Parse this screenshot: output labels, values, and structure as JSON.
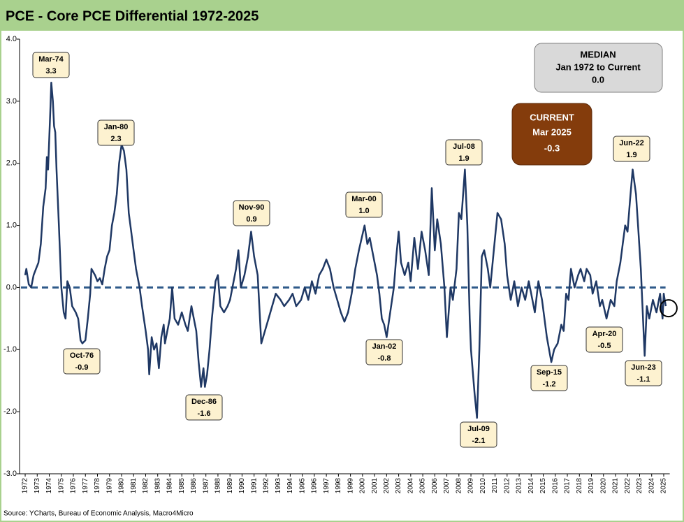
{
  "chart_data": {
    "type": "line",
    "title": "PCE - Core PCE Differential 1972-2025",
    "source": "Source: YCharts, Bureau of Economic Analysis, Macro4Micro",
    "color": "#1f3864",
    "x": [
      1972.0,
      1972.1,
      1972.3,
      1972.5,
      1972.7,
      1972.9,
      1973.1,
      1973.3,
      1973.5,
      1973.7,
      1973.8,
      1973.9,
      1974.0,
      1974.1,
      1974.17,
      1974.3,
      1974.4,
      1974.5,
      1974.6,
      1974.8,
      1975.0,
      1975.2,
      1975.35,
      1975.5,
      1975.7,
      1975.9,
      1976.2,
      1976.4,
      1976.6,
      1976.75,
      1977.0,
      1977.2,
      1977.4,
      1977.5,
      1977.8,
      1978.0,
      1978.2,
      1978.4,
      1978.6,
      1978.8,
      1979.0,
      1979.2,
      1979.4,
      1979.6,
      1979.8,
      1980.0,
      1980.2,
      1980.4,
      1980.6,
      1980.8,
      1981.0,
      1981.2,
      1981.5,
      1981.7,
      1982.0,
      1982.2,
      1982.3,
      1982.5,
      1982.7,
      1982.9,
      1983.1,
      1983.3,
      1983.5,
      1983.6,
      1983.8,
      1984.0,
      1984.2,
      1984.4,
      1984.7,
      1985.0,
      1985.3,
      1985.5,
      1985.8,
      1986.0,
      1986.2,
      1986.4,
      1986.6,
      1986.8,
      1986.92,
      1987.1,
      1987.3,
      1987.5,
      1987.8,
      1988.0,
      1988.2,
      1988.5,
      1988.8,
      1989.0,
      1989.3,
      1989.5,
      1989.7,
      1989.9,
      1990.2,
      1990.5,
      1990.75,
      1991.0,
      1991.3,
      1991.6,
      1991.9,
      1992.2,
      1992.5,
      1992.8,
      1993.2,
      1993.5,
      1993.9,
      1994.2,
      1994.5,
      1994.9,
      1995.2,
      1995.5,
      1995.8,
      1996.1,
      1996.4,
      1996.7,
      1997.0,
      1997.3,
      1997.6,
      1997.9,
      1998.2,
      1998.5,
      1998.8,
      1999.1,
      1999.4,
      1999.7,
      2000.17,
      2000.4,
      2000.6,
      2000.9,
      2001.2,
      2001.4,
      2001.6,
      2001.8,
      2002.0,
      2002.3,
      2002.6,
      2002.8,
      2003.0,
      2003.2,
      2003.5,
      2003.8,
      2004.0,
      2004.3,
      2004.6,
      2004.9,
      2005.2,
      2005.5,
      2005.75,
      2006.0,
      2006.2,
      2006.5,
      2006.8,
      2007.0,
      2007.3,
      2007.5,
      2007.8,
      2008.0,
      2008.2,
      2008.5,
      2008.7,
      2008.9,
      2009.0,
      2009.3,
      2009.5,
      2009.7,
      2009.9,
      2010.1,
      2010.4,
      2010.6,
      2010.9,
      2011.2,
      2011.5,
      2011.8,
      2012.0,
      2012.3,
      2012.6,
      2012.9,
      2013.2,
      2013.5,
      2013.8,
      2014.0,
      2014.3,
      2014.6,
      2014.9,
      2015.3,
      2015.67,
      2015.9,
      2016.2,
      2016.5,
      2016.7,
      2016.9,
      2017.1,
      2017.3,
      2017.6,
      2017.9,
      2018.1,
      2018.4,
      2018.6,
      2018.9,
      2019.1,
      2019.4,
      2019.7,
      2019.9,
      2020.25,
      2020.6,
      2020.9,
      2021.1,
      2021.4,
      2021.6,
      2021.8,
      2022.0,
      2022.2,
      2022.42,
      2022.7,
      2022.9,
      2023.1,
      2023.42,
      2023.6,
      2023.8,
      2024.1,
      2024.4,
      2024.7,
      2024.9,
      2025.0,
      2025.17
    ],
    "values": [
      0.2,
      0.3,
      0.05,
      0.0,
      0.2,
      0.3,
      0.4,
      0.7,
      1.3,
      1.6,
      2.1,
      1.9,
      2.4,
      2.9,
      3.3,
      3.0,
      2.6,
      2.5,
      1.9,
      1.0,
      0.0,
      -0.4,
      -0.5,
      0.1,
      0.0,
      -0.3,
      -0.4,
      -0.5,
      -0.85,
      -0.9,
      -0.85,
      -0.5,
      -0.1,
      0.3,
      0.2,
      0.1,
      0.15,
      0.05,
      0.3,
      0.5,
      0.6,
      1.0,
      1.2,
      1.5,
      2.0,
      2.3,
      2.2,
      1.9,
      1.2,
      0.9,
      0.6,
      0.3,
      0.0,
      -0.3,
      -0.7,
      -1.0,
      -1.4,
      -0.8,
      -1.0,
      -0.9,
      -1.3,
      -0.8,
      -0.6,
      -0.9,
      -0.7,
      -0.5,
      0.0,
      -0.5,
      -0.6,
      -0.4,
      -0.6,
      -0.7,
      -0.3,
      -0.5,
      -0.7,
      -1.2,
      -1.6,
      -1.3,
      -1.6,
      -1.4,
      -1.0,
      -0.5,
      0.1,
      0.2,
      -0.3,
      -0.4,
      -0.3,
      -0.2,
      0.1,
      0.3,
      0.6,
      0.0,
      0.2,
      0.5,
      0.9,
      0.5,
      0.2,
      -0.9,
      -0.7,
      -0.5,
      -0.3,
      -0.1,
      -0.2,
      -0.3,
      -0.2,
      -0.1,
      -0.3,
      -0.2,
      0.0,
      -0.2,
      0.1,
      -0.1,
      0.2,
      0.3,
      0.45,
      0.3,
      0.0,
      -0.2,
      -0.4,
      -0.55,
      -0.4,
      -0.1,
      0.3,
      0.6,
      1.0,
      0.7,
      0.8,
      0.5,
      0.2,
      -0.1,
      -0.5,
      -0.6,
      -0.8,
      -0.4,
      0.0,
      0.5,
      0.9,
      0.4,
      0.2,
      0.4,
      0.1,
      0.8,
      0.3,
      0.9,
      0.6,
      0.2,
      1.6,
      0.6,
      1.1,
      0.7,
      0.0,
      -0.8,
      0.0,
      -0.2,
      0.3,
      1.2,
      1.1,
      1.9,
      1.0,
      -0.5,
      -1.0,
      -1.7,
      -2.1,
      -1.0,
      0.5,
      0.6,
      0.3,
      0.0,
      0.6,
      1.2,
      1.1,
      0.7,
      0.2,
      -0.2,
      0.1,
      -0.3,
      0.0,
      -0.2,
      0.1,
      -0.1,
      -0.4,
      0.1,
      -0.2,
      -0.8,
      -1.2,
      -1.0,
      -0.9,
      -0.6,
      -0.7,
      -0.1,
      -0.2,
      0.3,
      0.0,
      0.2,
      0.3,
      0.1,
      0.3,
      0.2,
      -0.1,
      0.1,
      -0.3,
      -0.2,
      -0.5,
      -0.2,
      -0.3,
      0.1,
      0.4,
      0.7,
      1.0,
      0.9,
      1.4,
      1.9,
      1.5,
      0.9,
      0.3,
      -1.1,
      -0.3,
      -0.5,
      -0.2,
      -0.4,
      -0.1,
      -0.5,
      -0.1,
      -0.3
    ],
    "xlim": [
      1971.5,
      2025.5
    ],
    "xticks": [
      1972,
      1973,
      1974,
      1975,
      1976,
      1977,
      1978,
      1979,
      1980,
      1981,
      1982,
      1983,
      1984,
      1985,
      1986,
      1987,
      1988,
      1989,
      1990,
      1991,
      1992,
      1993,
      1994,
      1995,
      1996,
      1997,
      1998,
      1999,
      2000,
      2001,
      2002,
      2003,
      2004,
      2005,
      2006,
      2007,
      2008,
      2009,
      2010,
      2011,
      2012,
      2013,
      2014,
      2015,
      2016,
      2017,
      2018,
      2019,
      2020,
      2021,
      2022,
      2023,
      2024,
      2025
    ],
    "ylim": [
      -3,
      4
    ],
    "yticks": [
      {
        "value": 4,
        "label": "4.0"
      },
      {
        "value": 3,
        "label": "3.0"
      },
      {
        "value": 2,
        "label": "2.0"
      },
      {
        "value": 1,
        "label": "1.0"
      },
      {
        "value": 0,
        "label": "0.0"
      },
      {
        "value": -1,
        "label": "-1.0"
      },
      {
        "value": -2,
        "label": "-2.0"
      },
      {
        "value": -3,
        "label": "-3.0"
      }
    ],
    "median": {
      "title": "MEDIAN",
      "period": "Jan 1972 to Current",
      "value": 0,
      "value_label": "0.0",
      "color": "#2e5a8a"
    },
    "current": {
      "title": "CURRENT",
      "period": "Mar 2025",
      "value": -0.3
    },
    "callouts": [
      {
        "label": "Mar-74",
        "value": 3.3
      },
      {
        "label": "Jan-80",
        "value": 2.3
      },
      {
        "label": "Nov-90",
        "value": 0.9
      },
      {
        "label": "Mar-00",
        "value": 1,
        "value_label": "1.0"
      },
      {
        "label": "Jul-08",
        "value": 1.9
      },
      {
        "label": "Jun-22",
        "value": 1.9
      },
      {
        "label": "Oct-76",
        "value": -0.9
      },
      {
        "label": "Dec-86",
        "value": -1.6
      },
      {
        "label": "Jan-02",
        "value": -0.8
      },
      {
        "label": "Jul-09",
        "value": -2.1
      },
      {
        "label": "Sep-15",
        "value": -1.2
      },
      {
        "label": "Apr-20",
        "value": -0.5
      },
      {
        "label": "Jun-23",
        "value": -1.1
      }
    ]
  }
}
